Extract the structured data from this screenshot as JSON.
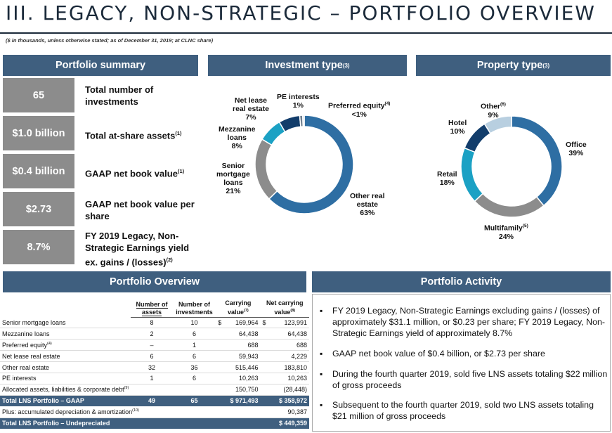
{
  "header": {
    "title": "III. LEGACY, NON-STRATEGIC – PORTFOLIO OVERVIEW",
    "subtitle": "($ in thousands, unless otherwise stated; as of December 31, 2019; at CLNC share)"
  },
  "summary": {
    "banner": "Portfolio summary",
    "items": [
      {
        "value": "65",
        "line1": "Total number of",
        "line2": "investments",
        "line3": "",
        "sup": ""
      },
      {
        "value": "$1.0 billion",
        "line1": "Total at-share assets",
        "line2": "",
        "line3": "",
        "sup": "(1)"
      },
      {
        "value": "$0.4 billion",
        "line1": "GAAP net book value",
        "line2": "",
        "line3": "",
        "sup": "(1)"
      },
      {
        "value": "$2.73",
        "line1": "GAAP net book value per",
        "line2": "share",
        "line3": "",
        "sup": ""
      },
      {
        "value": "8.7%",
        "line1": "FY 2019 Legacy, Non-",
        "line2": "Strategic Earnings yield",
        "line3": "ex. gains / (losses)",
        "sup": "(2)"
      }
    ]
  },
  "investment_type": {
    "banner": "Investment type",
    "banner_sup": "(3)",
    "labels": {
      "net_lease": {
        "l1": "Net lease",
        "l2": "real estate",
        "pct": "7%"
      },
      "pe": {
        "l1": "PE interests",
        "pct": "1%"
      },
      "preferred": {
        "l1": "Preferred equity",
        "sup": "(4)",
        "pct": "<1%"
      },
      "mezz": {
        "l1": "Mezzanine",
        "l2": "loans",
        "pct": "8%"
      },
      "senior": {
        "l1": "Senior",
        "l2": "mortgage",
        "l3": "loans",
        "pct": "21%"
      },
      "other": {
        "l1": "Other real",
        "l2": "estate",
        "pct": "63%"
      }
    }
  },
  "property_type": {
    "banner": "Property type",
    "banner_sup": "(3)",
    "labels": {
      "other": {
        "l1": "Other",
        "sup": "(6)",
        "pct": "9%"
      },
      "hotel": {
        "l1": "Hotel",
        "pct": "10%"
      },
      "office": {
        "l1": "Office",
        "pct": "39%"
      },
      "retail": {
        "l1": "Retail",
        "pct": "18%"
      },
      "multifamily": {
        "l1": "Multifamily",
        "sup": "(5)",
        "pct": "24%"
      }
    }
  },
  "chart_data": [
    {
      "type": "pie",
      "title": "Investment type",
      "categories": [
        "Other real estate",
        "Senior mortgage loans",
        "Mezzanine loans",
        "Net lease real estate",
        "PE interests",
        "Preferred equity"
      ],
      "values": [
        63,
        21,
        8,
        7,
        1,
        0.5
      ],
      "colors": [
        "#2e6ea3",
        "#8c8c8c",
        "#1ba1c4",
        "#123d6b",
        "#6f7f8f",
        "#b8cfe0"
      ]
    },
    {
      "type": "pie",
      "title": "Property type",
      "categories": [
        "Office",
        "Multifamily",
        "Retail",
        "Hotel",
        "Other"
      ],
      "values": [
        39,
        24,
        18,
        10,
        9
      ],
      "colors": [
        "#2e6ea3",
        "#8c8c8c",
        "#1ba1c4",
        "#123d6b",
        "#b8cfe0"
      ]
    }
  ],
  "overview": {
    "banner": "Portfolio Overview",
    "headers": {
      "c1a": "Number of",
      "c1b": "assets",
      "c2a": "Number of",
      "c2b": "investments",
      "c3a": "Carrying",
      "c3b": "value",
      "c3sup": "(7)",
      "c4a": "Net carrying",
      "c4b": "value",
      "c4sup": "(8)"
    },
    "rows": [
      {
        "label": "Senior mortgage loans",
        "sup": "",
        "assets": "8",
        "inv": "10",
        "cur1": "$",
        "carrying": "169,964",
        "cur2": "$",
        "net": "123,991"
      },
      {
        "label": "Mezzanine loans",
        "sup": "",
        "assets": "2",
        "inv": "6",
        "cur1": "",
        "carrying": "64,438",
        "cur2": "",
        "net": "64,438"
      },
      {
        "label": "Preferred equity",
        "sup": "(4)",
        "assets": "–",
        "inv": "1",
        "cur1": "",
        "carrying": "688",
        "cur2": "",
        "net": "688"
      },
      {
        "label": "Net lease real estate",
        "sup": "",
        "assets": "6",
        "inv": "6",
        "cur1": "",
        "carrying": "59,943",
        "cur2": "",
        "net": "4,229"
      },
      {
        "label": "Other real estate",
        "sup": "",
        "assets": "32",
        "inv": "36",
        "cur1": "",
        "carrying": "515,446",
        "cur2": "",
        "net": "183,810"
      },
      {
        "label": "PE interests",
        "sup": "",
        "assets": "1",
        "inv": "6",
        "cur1": "",
        "carrying": "10,263",
        "cur2": "",
        "net": "10,263"
      },
      {
        "label": "Allocated assets, liabilities & corporate debt",
        "sup": "(9)",
        "assets": "",
        "inv": "",
        "cur1": "",
        "carrying": "150,750",
        "cur2": "",
        "net": "(28,448)"
      }
    ],
    "total": {
      "label": "Total LNS Portfolio – GAAP",
      "assets": "49",
      "inv": "65",
      "carrying": "$ 971,493",
      "net": "$ 358,972"
    },
    "plus": {
      "label": "Plus: accumulated depreciation & amortization",
      "sup": "(10)",
      "net": "90,387"
    },
    "undep": {
      "label": "Total LNS Portfolio – Undepreciated",
      "net": "$ 449,359"
    }
  },
  "activity": {
    "banner": "Portfolio Activity",
    "bullets": [
      "FY 2019 Legacy, Non-Strategic Earnings excluding gains / (losses) of approximately $31.1 million, or $0.23 per share; FY 2019 Legacy, Non-Strategic Earnings yield of approximately 8.7%",
      "GAAP net book value of $0.4 billion, or $2.73 per share",
      "During the fourth quarter 2019, sold five LNS assets totaling $22 million of gross proceeds",
      "Subsequent to the fourth quarter 2019, sold two LNS assets totaling $21 million of gross proceeds"
    ]
  }
}
